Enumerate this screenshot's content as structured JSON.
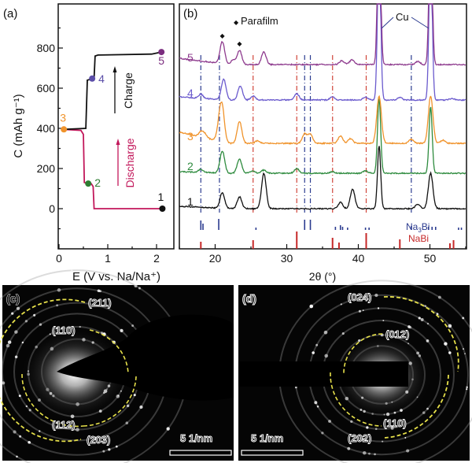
{
  "panel_a": {
    "label": "(a)",
    "chart_data": {
      "type": "line",
      "title": "",
      "xlabel": "E (V vs. Na/Na⁺)",
      "ylabel": "C (mAh g⁻¹)",
      "xlim": [
        0,
        2.3
      ],
      "ylim": [
        -200,
        1000
      ],
      "xticks": [
        0,
        1,
        2
      ],
      "yticks": [
        0,
        200,
        400,
        600,
        800
      ],
      "series": [
        {
          "name": "Discharge",
          "color": "#c2185b",
          "x": [
            2.12,
            0.72,
            0.7,
            0.66,
            0.6,
            0.52,
            0.5,
            0.45,
            0.1
          ],
          "y": [
            0,
            0,
            110,
            125,
            125,
            130,
            370,
            390,
            395
          ]
        },
        {
          "name": "Charge",
          "color": "#111111",
          "x": [
            0.1,
            0.55,
            0.58,
            0.66,
            0.72,
            0.74,
            0.8,
            1.9,
            2.1
          ],
          "y": [
            395,
            400,
            640,
            645,
            650,
            760,
            765,
            770,
            780
          ]
        }
      ],
      "points": [
        {
          "id": "1",
          "x": 2.12,
          "y": 0,
          "color": "#111111"
        },
        {
          "id": "2",
          "x": 0.6,
          "y": 125,
          "color": "#2e7d32"
        },
        {
          "id": "3",
          "x": 0.1,
          "y": 395,
          "color": "#f0932b"
        },
        {
          "id": "4",
          "x": 0.68,
          "y": 648,
          "color": "#5b4ea8"
        },
        {
          "id": "5",
          "x": 2.1,
          "y": 780,
          "color": "#7b2d7f"
        }
      ],
      "annotations": [
        {
          "text": "Charge",
          "color": "#111111"
        },
        {
          "text": "Discharge",
          "color": "#c2185b"
        }
      ]
    }
  },
  "panel_b": {
    "label": "(b)",
    "chart_data": {
      "type": "line",
      "xlabel": "2θ (°)",
      "ylabel": "",
      "xlim": [
        15,
        55
      ],
      "xticks": [
        20,
        30,
        40,
        50
      ],
      "legend": [
        {
          "symbol": "◆",
          "text": "Parafilm"
        }
      ],
      "annotations": [
        {
          "text": "Cu"
        },
        {
          "text": "Na₃Bi",
          "color": "#2b3b8f"
        },
        {
          "text": "NaBi",
          "color": "#c62828"
        }
      ],
      "series": [
        {
          "name": "1",
          "color": "#111111",
          "peaks": [
            [
              21.0,
              20
            ],
            [
              23.4,
              15
            ],
            [
              26.8,
              45
            ],
            [
              37.5,
              8
            ],
            [
              39.2,
              25
            ],
            [
              42.9,
              80
            ],
            [
              48.3,
              6
            ],
            [
              50.1,
              45
            ]
          ]
        },
        {
          "name": "2",
          "color": "#2e8b3e",
          "peaks": [
            [
              18.0,
              4
            ],
            [
              21.0,
              28
            ],
            [
              23.4,
              18
            ],
            [
              25.3,
              3
            ],
            [
              26.8,
              4
            ],
            [
              31.4,
              6
            ],
            [
              36.4,
              2
            ],
            [
              41.0,
              3
            ],
            [
              42.9,
              95
            ],
            [
              50.1,
              85
            ]
          ]
        },
        {
          "name": "3",
          "color": "#f0932b",
          "peaks": [
            [
              18.0,
              6
            ],
            [
              18.5,
              5
            ],
            [
              20.6,
              22
            ],
            [
              21.0,
              38
            ],
            [
              23.4,
              28
            ],
            [
              25.9,
              3
            ],
            [
              32.5,
              12
            ],
            [
              33.3,
              12
            ],
            [
              37.5,
              9
            ],
            [
              38.9,
              6
            ],
            [
              42.9,
              60
            ],
            [
              47.4,
              5
            ],
            [
              50.1,
              60
            ],
            [
              51.8,
              4
            ]
          ]
        },
        {
          "name": "4",
          "color": "#6a5acd",
          "peaks": [
            [
              18.0,
              5
            ],
            [
              21.2,
              26
            ],
            [
              23.5,
              18
            ],
            [
              25.3,
              5
            ],
            [
              31.4,
              8
            ],
            [
              36.4,
              4
            ],
            [
              41.0,
              4
            ],
            [
              42.9,
              200
            ],
            [
              45.8,
              3
            ],
            [
              50.1,
              200
            ],
            [
              53.1,
              2
            ]
          ]
        },
        {
          "name": "5",
          "color": "#8e3b8e",
          "peaks": [
            [
              21.0,
              28
            ],
            [
              22.5,
              6
            ],
            [
              23.4,
              18
            ],
            [
              26.8,
              16
            ],
            [
              37.7,
              5
            ],
            [
              39.1,
              6
            ],
            [
              42.9,
              200
            ],
            [
              48.3,
              4
            ],
            [
              50.1,
              200
            ]
          ]
        }
      ],
      "parafilm_markers": [
        21.0,
        23.4
      ],
      "reference_Na3Bi": [
        18.0,
        18.3,
        20.5,
        25.7,
        32.5,
        33.3,
        36.8,
        37.5,
        37.8,
        38.5,
        41.0,
        41.5,
        47.4,
        49.8,
        50.3,
        50.8,
        54.0,
        54.4
      ],
      "reference_NaBi": [
        18.0,
        25.3,
        31.4,
        36.4,
        37.3,
        41.1,
        45.8,
        52.8,
        53.3
      ],
      "guide_lines_blue": [
        18.0,
        20.6,
        32.5,
        33.3,
        47.4
      ],
      "guide_lines_red": [
        25.3,
        31.4,
        36.4,
        41.1
      ]
    }
  },
  "panel_c": {
    "label": "(c)",
    "rings": [
      "(211)",
      "(110)",
      "(112)",
      "(203)"
    ],
    "scale_bar": "5 1/nm"
  },
  "panel_d": {
    "label": "(d)",
    "rings": [
      "(024)",
      "(012)",
      "(110)",
      "(202)"
    ],
    "scale_bar": "5 1/nm"
  }
}
